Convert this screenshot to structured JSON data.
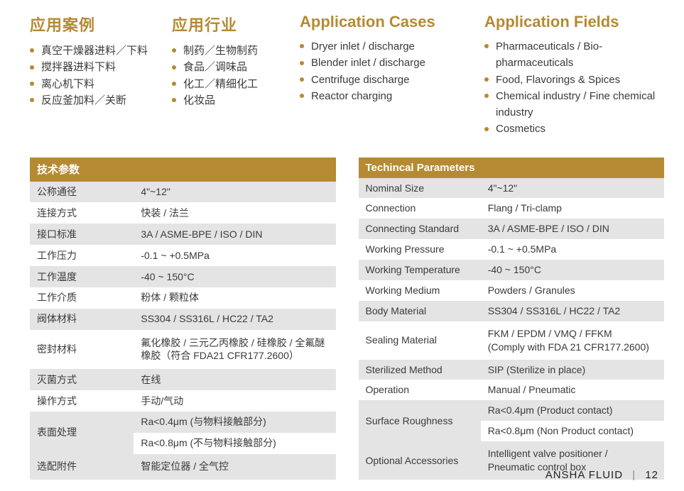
{
  "colors": {
    "accent": "#b58a32",
    "row_alt": "#e4e4e4",
    "row_base": "#ffffff",
    "text": "#3a3a3a"
  },
  "sections": {
    "cases_zh": {
      "title": "应用案例",
      "items": [
        "真空干燥器进料／下料",
        "搅拌器进料下料",
        "离心机下料",
        "反应釜加料／关断"
      ]
    },
    "fields_zh": {
      "title": "应用行业",
      "items": [
        "制药／生物制药",
        "食品／调味品",
        "化工／精细化工",
        "化妆品"
      ]
    },
    "cases_en": {
      "title": "Application Cases",
      "items": [
        "Dryer inlet / discharge",
        "Blender inlet / discharge",
        "Centrifuge discharge",
        "Reactor charging"
      ]
    },
    "fields_en": {
      "title": "Application Fields",
      "items": [
        "Pharmaceuticals / Bio-pharmaceuticals",
        "Food, Flavorings & Spices",
        "Chemical industry / Fine chemical industry",
        "Cosmetics"
      ]
    }
  },
  "table_zh": {
    "header": "技术参数",
    "rows": [
      {
        "k": "公称通径",
        "v": "4\"~12\""
      },
      {
        "k": "连接方式",
        "v": "快装 / 法兰"
      },
      {
        "k": "接口标准",
        "v": "3A / ASME-BPE / ISO / DIN"
      },
      {
        "k": "工作压力",
        "v": "-0.1 ~ +0.5MPa"
      },
      {
        "k": "工作温度",
        "v": "-40 ~ 150°C"
      },
      {
        "k": "工作介质",
        "v": "粉体 / 颗粒体"
      },
      {
        "k": "阀体材料",
        "v": "SS304 / SS316L / HC22 / TA2"
      },
      {
        "k": "密封材料",
        "v": "氟化橡胶 / 三元乙丙橡胶 / 硅橡胶 / 全氟醚橡胶（符合 FDA21 CFR177.2600）",
        "tall": true
      },
      {
        "k": "灭菌方式",
        "v": "在线"
      },
      {
        "k": "操作方式",
        "v": "手动/气动"
      },
      {
        "k": "表面处理",
        "v": "Ra<0.4μm (与物料接触部分)",
        "span": 2
      },
      {
        "k": "",
        "v": "Ra<0.8μm (不与物料接触部分)"
      },
      {
        "k": "选配附件",
        "v": "智能定位器 / 全气控",
        "tall": true
      }
    ]
  },
  "table_en": {
    "header": "Techincal Parameters",
    "rows": [
      {
        "k": "Nominal Size",
        "v": "4\"~12\""
      },
      {
        "k": "Connection",
        "v": "Flang / Tri-clamp"
      },
      {
        "k": "Connecting Standard",
        "v": "3A / ASME-BPE / ISO / DIN"
      },
      {
        "k": "Working Pressure",
        "v": "-0.1 ~ +0.5MPa"
      },
      {
        "k": "Working Temperature",
        "v": "-40 ~ 150°C"
      },
      {
        "k": "Working Medium",
        "v": "Powders / Granules"
      },
      {
        "k": "Body Material",
        "v": "SS304 / SS316L / HC22 / TA2"
      },
      {
        "k": "Sealing Material",
        "v": "FKM / EPDM / VMQ / FFKM\n(Comply with FDA 21 CFR177.2600)",
        "tall": true
      },
      {
        "k": "Sterilized Method",
        "v": "SIP (Sterilize in place)"
      },
      {
        "k": "Operation",
        "v": "Manual / Pneumatic"
      },
      {
        "k": "Surface Roughness",
        "v": "Ra<0.4μm (Product contact)",
        "span": 2
      },
      {
        "k": "",
        "v": "Ra<0.8μm (Non Product contact)"
      },
      {
        "k": "Optional Accessories",
        "v": "Intelligent valve positioner / Pneumatic control box",
        "tall": true
      }
    ]
  },
  "footer": {
    "brand": "ANSHA FLUID",
    "page": "12"
  }
}
